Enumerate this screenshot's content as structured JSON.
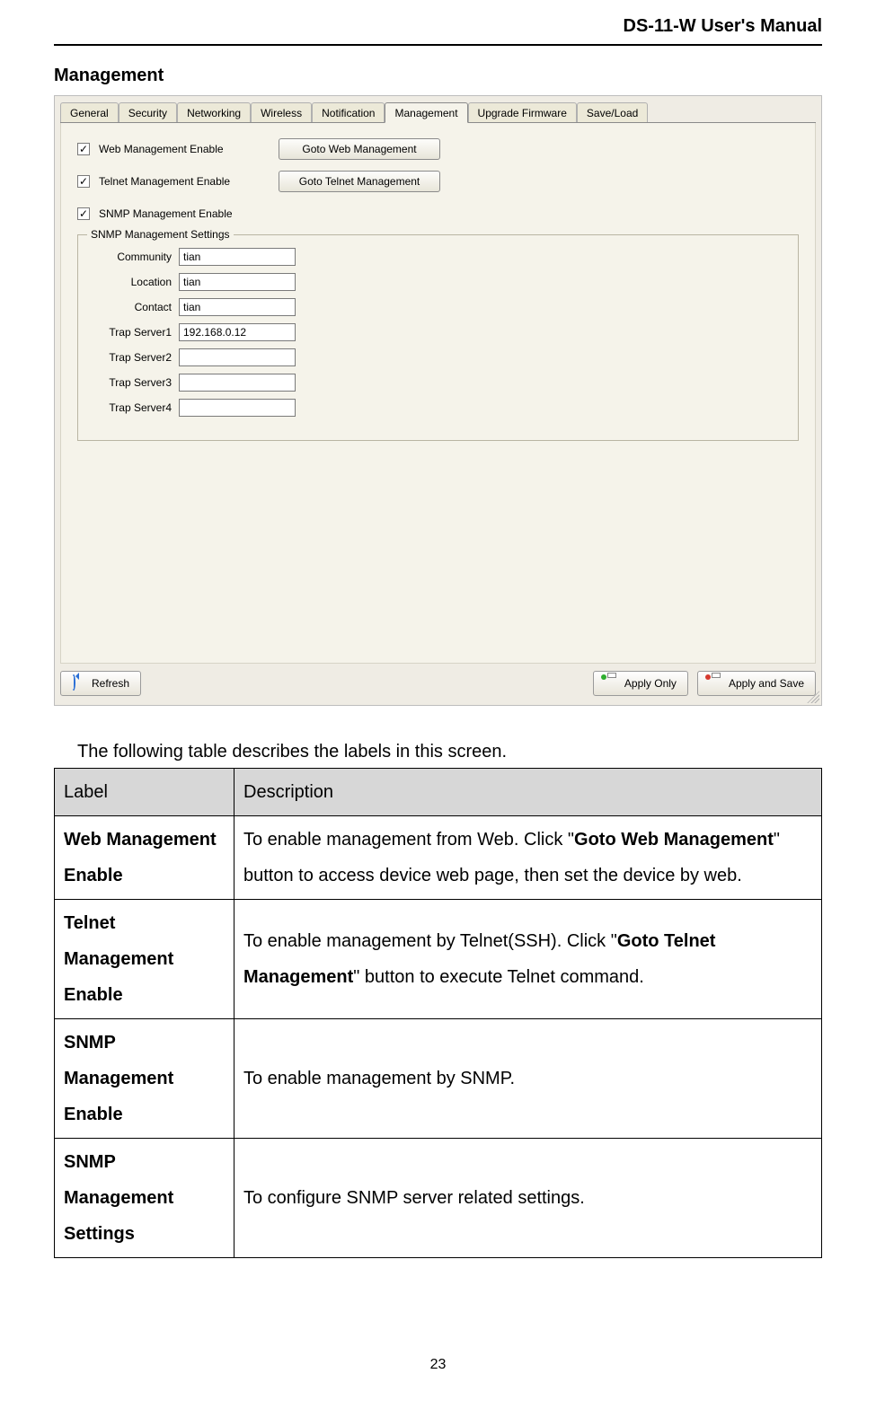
{
  "doc_header": "DS-11-W User's Manual",
  "section_title": "Management",
  "screenshot": {
    "tabs": [
      "General",
      "Security",
      "Networking",
      "Wireless",
      "Notification",
      "Management",
      "Upgrade Firmware",
      "Save/Load"
    ],
    "active_tab_index": 5,
    "checks": [
      {
        "label": "Web Management Enable",
        "checked": true,
        "button": "Goto Web Management"
      },
      {
        "label": "Telnet Management Enable",
        "checked": true,
        "button": "Goto Telnet Management"
      },
      {
        "label": "SNMP Management Enable",
        "checked": true,
        "button": null
      }
    ],
    "fieldset_legend": "SNMP Management Settings",
    "fields": [
      {
        "label": "Community",
        "value": "tian"
      },
      {
        "label": "Location",
        "value": "tian"
      },
      {
        "label": "Contact",
        "value": "tian"
      },
      {
        "label": "Trap Server1",
        "value": "192.168.0.12"
      },
      {
        "label": "Trap Server2",
        "value": ""
      },
      {
        "label": "Trap Server3",
        "value": ""
      },
      {
        "label": "Trap Server4",
        "value": ""
      }
    ],
    "buttons": {
      "refresh": "Refresh",
      "apply_only": "Apply Only",
      "apply_save": "Apply and Save"
    }
  },
  "intro_text": "The following table describes the labels in this screen.",
  "table": {
    "head": {
      "label": "Label",
      "desc": "Description"
    },
    "rows": [
      {
        "label": "Web Management Enable",
        "desc_pre": "To enable management from Web.   Click \"",
        "desc_bold": "Goto Web Management",
        "desc_post": "\" button to access device web page, then set the device by web.",
        "justify": true
      },
      {
        "label": "Telnet Management Enable",
        "desc_pre": "To enable management by Telnet(SSH). Click \"",
        "desc_bold": "Goto Telnet Management",
        "desc_post": "\" button to execute Telnet command.",
        "justify": false
      },
      {
        "label": "SNMP Management Enable",
        "desc_pre": "To enable management by SNMP.",
        "desc_bold": "",
        "desc_post": "",
        "justify": false
      },
      {
        "label": "SNMP Management Settings",
        "desc_pre": "To configure SNMP server related settings.",
        "desc_bold": "",
        "desc_post": "",
        "justify": false
      }
    ]
  },
  "page_number": "23"
}
